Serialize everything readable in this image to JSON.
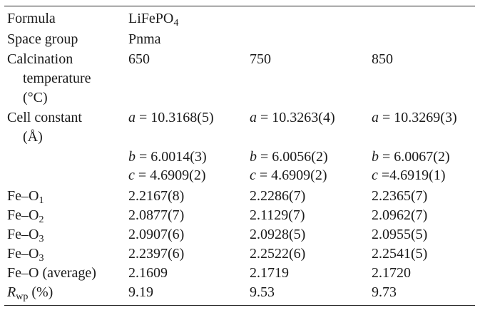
{
  "table": {
    "rows": [
      {
        "label": "Formula",
        "formula_base": "LiFePO",
        "formula_sub": "4"
      },
      {
        "label": "Space group",
        "value": "Pnma"
      },
      {
        "label_lines": [
          "Calcination",
          "temperature",
          "(°C)"
        ],
        "values": [
          "650",
          "750",
          "850"
        ]
      },
      {
        "label_lines": [
          "Cell constant",
          "(Å)"
        ],
        "a": [
          {
            "var": "a",
            "rest": " = 10.3168(5)"
          },
          {
            "var": "a",
            "rest": " = 10.3263(4)"
          },
          {
            "var": "a",
            "rest": " = 10.3269(3)"
          }
        ],
        "b": [
          {
            "var": "b",
            "rest": " = 6.0014(3)"
          },
          {
            "var": "b",
            "rest": " = 6.0056(2)"
          },
          {
            "var": "b",
            "rest": " = 6.0067(2)"
          }
        ],
        "c": [
          {
            "var": "c",
            "rest": " = 4.6909(2)"
          },
          {
            "var": "c",
            "rest": " = 4.6909(2)"
          },
          {
            "var": "c",
            "rest": " =4.6919(1)"
          }
        ]
      },
      {
        "label_base": "Fe–O",
        "label_sub": "1",
        "values": [
          "2.2167(8)",
          "2.2286(7)",
          "2.2365(7)"
        ]
      },
      {
        "label_base": "Fe–O",
        "label_sub": "2",
        "values": [
          "2.0877(7)",
          "2.1129(7)",
          "2.0962(7)"
        ]
      },
      {
        "label_base": "Fe–O",
        "label_sub": "3",
        "values": [
          "2.0907(6)",
          "2.0928(5)",
          "2.0955(5)"
        ]
      },
      {
        "label_base": "Fe–O",
        "label_sub": "3",
        "values": [
          "2.2397(6)",
          "2.2522(6)",
          "2.2541(5)"
        ]
      },
      {
        "label": "Fe–O (average)",
        "values": [
          "2.1609",
          "2.1719",
          "2.1720"
        ]
      },
      {
        "label_base": "R",
        "label_sub": "wp",
        "label_rest": " (%)",
        "values": [
          "9.19",
          "9.53",
          "9.73"
        ]
      }
    ]
  }
}
